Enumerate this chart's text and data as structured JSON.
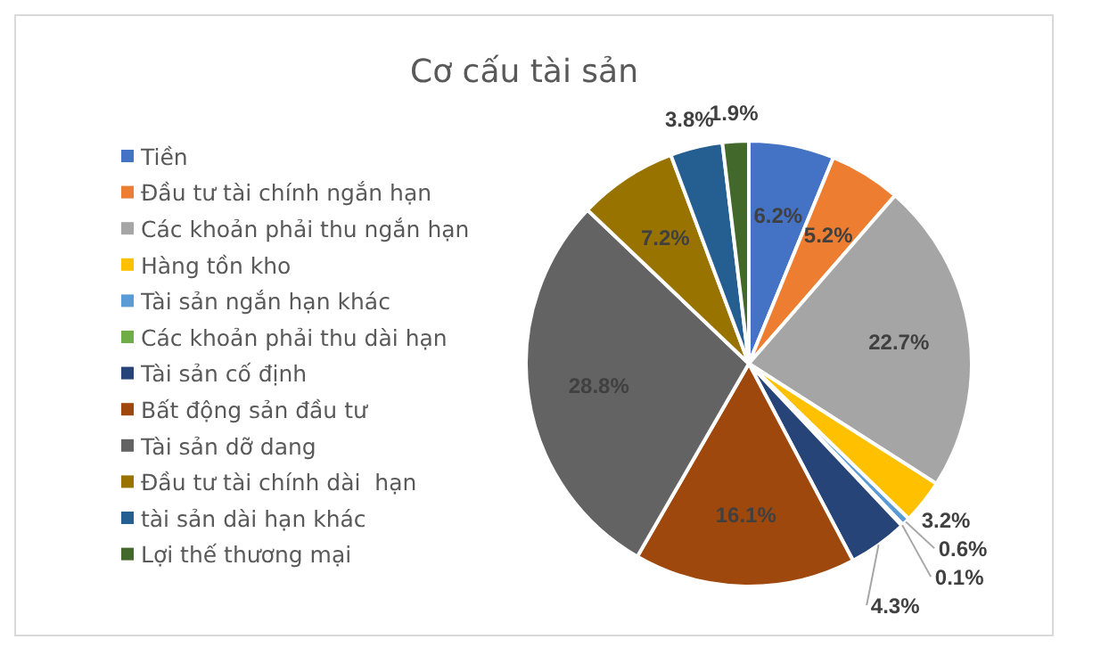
{
  "chart_data": {
    "type": "pie",
    "title": "Cơ cấu tài sản",
    "categories": [
      "Tiền",
      "Đầu tư tài chính ngắn hạn",
      "Các khoản phải thu ngắn hạn",
      "Hàng tồn kho",
      "Tài sản ngắn hạn khác",
      "Các khoản phải thu dài hạn",
      "Tài sản cố định",
      "Bất động sản đầu tư",
      "Tài sản dỡ dang",
      "Đầu tư tài chính dài  hạn",
      "tài sản dài hạn khác",
      "Lợi thế thương mại"
    ],
    "values": [
      6.2,
      5.2,
      22.7,
      3.2,
      0.6,
      0.1,
      4.3,
      16.1,
      28.8,
      7.2,
      3.8,
      1.9
    ],
    "value_labels": [
      "6.2%",
      "5.2%",
      "22.7%",
      "3.2%",
      "0.6%",
      "0.1%",
      "4.3%",
      "16.1%",
      "28.8%",
      "7.2%",
      "3.8%",
      "1.9%"
    ],
    "colors": [
      "#4472c4",
      "#ed7d31",
      "#a5a5a5",
      "#ffc000",
      "#5b9bd5",
      "#70ad47",
      "#264478",
      "#9e480e",
      "#636363",
      "#997300",
      "#255e91",
      "#43682b"
    ],
    "legend": "left"
  }
}
